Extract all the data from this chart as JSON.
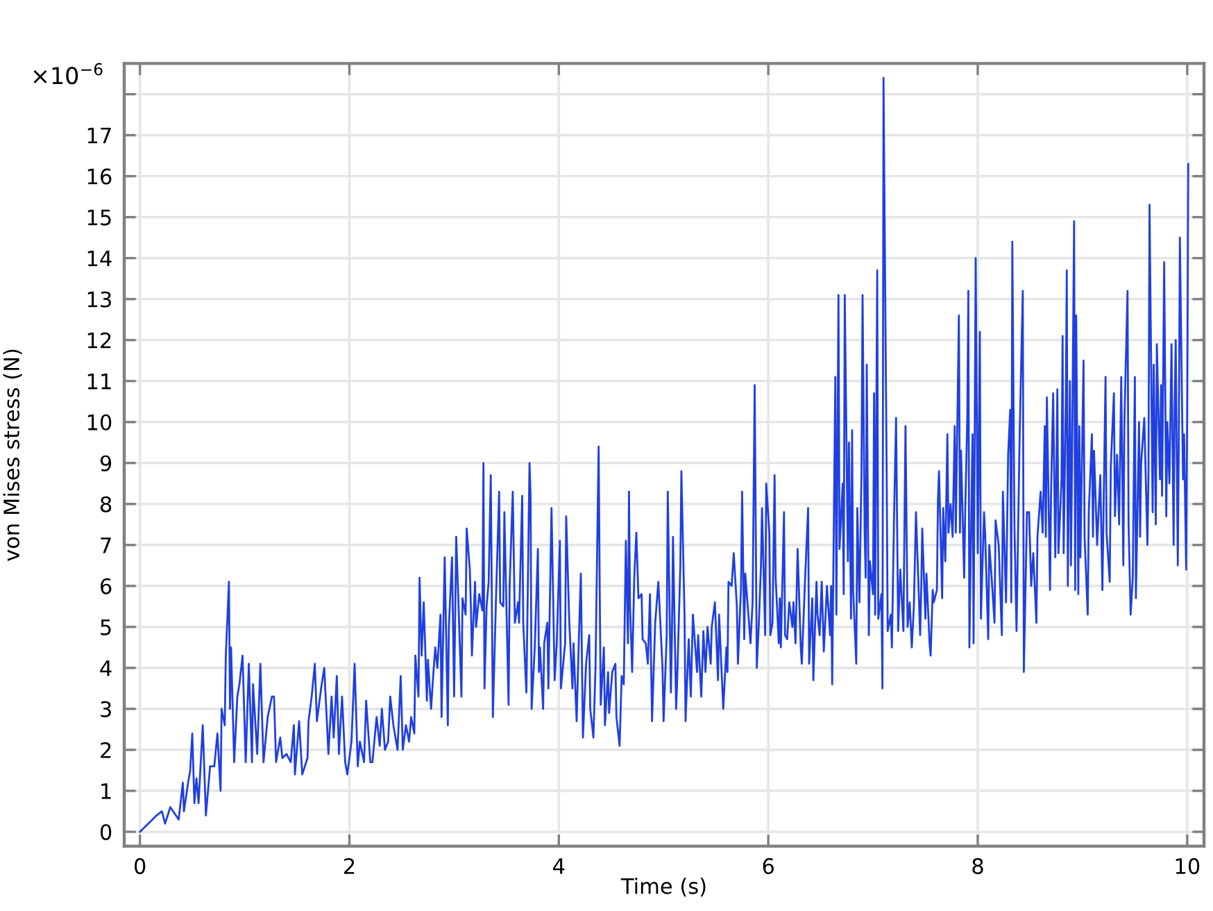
{
  "chart_data": {
    "type": "line",
    "xlabel": "Time (s)",
    "ylabel": "von Mises stress (N)",
    "annotations": [
      "×10$^{−6}$"
    ],
    "xlim": [
      -0.15,
      10.16
    ],
    "ylim": [
      -0.35,
      18.75
    ],
    "xticks": [
      0,
      2,
      4,
      6,
      8,
      10
    ],
    "yticks": [
      0,
      1,
      2,
      3,
      4,
      5,
      6,
      7,
      8,
      9,
      10,
      11,
      12,
      13,
      14,
      15,
      16,
      17,
      {
        "value": 18,
        "label": null
      }
    ],
    "grid": true,
    "x": [
      0.0,
      0.16,
      0.21,
      0.24,
      0.29,
      0.37,
      0.41,
      0.42,
      0.46,
      0.48,
      0.5,
      0.52,
      0.54,
      0.56,
      0.6,
      0.63,
      0.67,
      0.71,
      0.74,
      0.77,
      0.78,
      0.81,
      0.82,
      0.85,
      0.86,
      0.87,
      0.9,
      0.93,
      0.95,
      0.98,
      1.01,
      1.04,
      1.07,
      1.08,
      1.12,
      1.15,
      1.18,
      1.22,
      1.26,
      1.28,
      1.3,
      1.34,
      1.36,
      1.4,
      1.44,
      1.47,
      1.48,
      1.52,
      1.55,
      1.6,
      1.61,
      1.64,
      1.67,
      1.69,
      1.73,
      1.76,
      1.8,
      1.83,
      1.85,
      1.88,
      1.9,
      1.93,
      1.96,
      1.98,
      2.02,
      2.05,
      2.08,
      2.1,
      2.14,
      2.16,
      2.2,
      2.22,
      2.26,
      2.29,
      2.31,
      2.34,
      2.37,
      2.39,
      2.42,
      2.46,
      2.49,
      2.51,
      2.54,
      2.57,
      2.59,
      2.62,
      2.63,
      2.66,
      2.67,
      2.69,
      2.71,
      2.74,
      2.75,
      2.78,
      2.8,
      2.82,
      2.84,
      2.87,
      2.88,
      2.91,
      2.94,
      2.95,
      2.98,
      3.0,
      3.02,
      3.04,
      3.07,
      3.08,
      3.11,
      3.12,
      3.15,
      3.16,
      3.17,
      3.2,
      3.21,
      3.24,
      3.27,
      3.28,
      3.29,
      3.31,
      3.33,
      3.35,
      3.37,
      3.4,
      3.43,
      3.44,
      3.47,
      3.48,
      3.52,
      3.53,
      3.56,
      3.58,
      3.61,
      3.62,
      3.65,
      3.66,
      3.69,
      3.72,
      3.73,
      3.74,
      3.77,
      3.8,
      3.81,
      3.82,
      3.85,
      3.86,
      3.89,
      3.9,
      3.93,
      3.96,
      3.98,
      4.01,
      4.02,
      4.06,
      4.07,
      4.1,
      4.13,
      4.14,
      4.17,
      4.19,
      4.21,
      4.23,
      4.26,
      4.29,
      4.3,
      4.33,
      4.35,
      4.38,
      4.39,
      4.4,
      4.43,
      4.44,
      4.47,
      4.48,
      4.51,
      4.54,
      4.55,
      4.58,
      4.6,
      4.62,
      4.64,
      4.66,
      4.67,
      4.68,
      4.7,
      4.72,
      4.74,
      4.76,
      4.79,
      4.8,
      4.83,
      4.85,
      4.87,
      4.89,
      4.92,
      4.95,
      4.99,
      5.0,
      5.03,
      5.04,
      5.07,
      5.08,
      5.09,
      5.12,
      5.13,
      5.16,
      5.17,
      5.2,
      5.21,
      5.24,
      5.26,
      5.28,
      5.32,
      5.33,
      5.36,
      5.38,
      5.4,
      5.42,
      5.45,
      5.46,
      5.49,
      5.52,
      5.53,
      5.57,
      5.6,
      5.61,
      5.62,
      5.65,
      5.67,
      5.7,
      5.71,
      5.74,
      5.75,
      5.77,
      5.78,
      5.81,
      5.83,
      5.85,
      5.87,
      5.89,
      5.91,
      5.93,
      5.94,
      5.97,
      5.98,
      6.01,
      6.02,
      6.04,
      6.06,
      6.07,
      6.1,
      6.11,
      6.12,
      6.15,
      6.16,
      6.18,
      6.2,
      6.23,
      6.24,
      6.26,
      6.28,
      6.31,
      6.32,
      6.35,
      6.38,
      6.39,
      6.42,
      6.43,
      6.46,
      6.47,
      6.49,
      6.51,
      6.53,
      6.56,
      6.59,
      6.6,
      6.61,
      6.64,
      6.65,
      6.67,
      6.68,
      6.71,
      6.72,
      6.73,
      6.76,
      6.77,
      6.79,
      6.8,
      6.81,
      6.84,
      6.85,
      6.87,
      6.89,
      6.9,
      6.92,
      6.93,
      6.94,
      6.96,
      6.97,
      7.0,
      7.01,
      7.02,
      7.04,
      7.05,
      7.08,
      7.09,
      7.1,
      7.13,
      7.14,
      7.17,
      7.18,
      7.2,
      7.22,
      7.24,
      7.25,
      7.26,
      7.29,
      7.31,
      7.33,
      7.35,
      7.37,
      7.39,
      7.41,
      7.43,
      7.45,
      7.46,
      7.47,
      7.5,
      7.51,
      7.54,
      7.55,
      7.57,
      7.58,
      7.61,
      7.62,
      7.63,
      7.66,
      7.67,
      7.69,
      7.71,
      7.72,
      7.74,
      7.76,
      7.78,
      7.79,
      7.8,
      7.82,
      7.83,
      7.84,
      7.87,
      7.88,
      7.9,
      7.91,
      7.92,
      7.95,
      7.96,
      7.98,
      8.0,
      8.02,
      8.03,
      8.06,
      8.07,
      8.1,
      8.11,
      8.13,
      8.16,
      8.17,
      8.2,
      8.23,
      8.24,
      8.27,
      8.29,
      8.31,
      8.32,
      8.33,
      8.35,
      8.37,
      8.4,
      8.43,
      8.44,
      8.47,
      8.49,
      8.51,
      8.53,
      8.56,
      8.57,
      8.6,
      8.62,
      8.64,
      8.65,
      8.66,
      8.69,
      8.7,
      8.72,
      8.74,
      8.76,
      8.77,
      8.8,
      8.81,
      8.82,
      8.84,
      8.85,
      8.86,
      8.88,
      8.89,
      8.9,
      8.92,
      8.93,
      8.94,
      8.96,
      8.97,
      8.98,
      9.01,
      9.02,
      9.05,
      9.06,
      9.09,
      9.1,
      9.11,
      9.14,
      9.15,
      9.17,
      9.19,
      9.22,
      9.23,
      9.26,
      9.27,
      9.3,
      9.31,
      9.33,
      9.35,
      9.37,
      9.39,
      9.4,
      9.43,
      9.44,
      9.46,
      9.48,
      9.5,
      9.51,
      9.54,
      9.55,
      9.56,
      9.59,
      9.62,
      9.63,
      9.64,
      9.67,
      9.68,
      9.7,
      9.71,
      9.74,
      9.75,
      9.76,
      9.78,
      9.8,
      9.81,
      9.83,
      9.85,
      9.87,
      9.88,
      9.89,
      9.91,
      9.92,
      9.93,
      9.96,
      9.97,
      9.99,
      10.0,
      10.01
    ],
    "series": [
      {
        "color": "#2040e0",
        "values": [
          0.0,
          0.4,
          0.5,
          0.2,
          0.6,
          0.3,
          1.2,
          0.5,
          1.2,
          1.5,
          2.4,
          0.7,
          1.3,
          0.7,
          2.6,
          0.4,
          1.6,
          1.6,
          2.4,
          1.0,
          3.0,
          2.6,
          4.3,
          6.1,
          3.0,
          4.5,
          1.7,
          3.3,
          3.6,
          4.3,
          1.7,
          4.1,
          1.7,
          3.6,
          1.9,
          4.1,
          1.7,
          2.8,
          3.3,
          3.3,
          1.7,
          2.3,
          1.8,
          1.9,
          1.7,
          2.6,
          1.4,
          2.7,
          1.4,
          1.8,
          2.7,
          3.3,
          4.1,
          2.7,
          3.5,
          4.0,
          1.9,
          3.3,
          2.3,
          3.8,
          1.9,
          3.3,
          1.7,
          1.4,
          2.2,
          4.1,
          1.6,
          2.2,
          1.7,
          3.2,
          1.7,
          1.7,
          2.8,
          2.1,
          3.0,
          2.0,
          2.2,
          3.3,
          2.6,
          2.0,
          3.8,
          2.0,
          2.6,
          2.2,
          2.8,
          2.4,
          4.3,
          3.3,
          6.2,
          4.3,
          5.6,
          3.2,
          4.2,
          3.0,
          3.8,
          4.5,
          4.0,
          5.3,
          2.8,
          6.7,
          2.6,
          5.0,
          6.7,
          3.3,
          7.2,
          5.7,
          3.3,
          5.7,
          5.3,
          7.4,
          6.4,
          5.5,
          4.3,
          6.1,
          5.0,
          5.8,
          5.4,
          9.0,
          3.5,
          5.5,
          6.1,
          8.7,
          2.8,
          5.7,
          8.3,
          5.6,
          5.5,
          7.8,
          3.1,
          6.0,
          8.3,
          5.1,
          5.6,
          5.1,
          8.2,
          5.1,
          3.4,
          9.0,
          8.2,
          3.0,
          4.5,
          6.9,
          3.9,
          4.5,
          3.0,
          4.6,
          5.1,
          3.5,
          7.9,
          3.7,
          4.6,
          7.1,
          3.5,
          4.6,
          7.7,
          5.1,
          3.5,
          4.6,
          2.7,
          4.6,
          6.3,
          2.3,
          4.1,
          4.8,
          3.0,
          2.3,
          4.0,
          9.4,
          6.0,
          3.1,
          4.5,
          2.6,
          3.9,
          2.9,
          3.9,
          4.1,
          2.8,
          2.1,
          3.8,
          3.6,
          7.1,
          4.6,
          8.3,
          5.5,
          3.9,
          6.2,
          7.3,
          5.7,
          5.8,
          4.7,
          4.6,
          4.1,
          5.8,
          2.7,
          5.1,
          6.1,
          4.0,
          2.7,
          4.8,
          8.3,
          3.4,
          4.8,
          7.2,
          3.0,
          3.7,
          6.5,
          8.8,
          5.3,
          2.7,
          4.7,
          3.3,
          5.3,
          3.9,
          4.8,
          3.3,
          4.9,
          3.9,
          5.0,
          4.1,
          5.0,
          5.6,
          3.7,
          5.3,
          3.0,
          4.5,
          3.9,
          6.1,
          6.0,
          6.8,
          5.5,
          4.1,
          6.0,
          8.3,
          4.7,
          6.3,
          5.3,
          4.6,
          5.6,
          10.9,
          4.0,
          5.1,
          6.5,
          7.9,
          4.8,
          8.5,
          7.3,
          4.8,
          5.1,
          8.7,
          6.2,
          4.6,
          5.7,
          4.5,
          7.8,
          4.8,
          4.7,
          5.6,
          5.0,
          5.6,
          4.6,
          6.9,
          4.5,
          4.1,
          6.1,
          7.9,
          4.1,
          5.7,
          3.7,
          6.1,
          5.3,
          4.8,
          6.1,
          4.4,
          6.0,
          4.8,
          6.0,
          3.6,
          11.1,
          5.3,
          13.1,
          6.9,
          8.5,
          5.8,
          13.1,
          6.6,
          9.5,
          5.2,
          9.8,
          5.9,
          4.1,
          7.9,
          5.6,
          8.8,
          13.1,
          7.3,
          6.2,
          11.4,
          4.8,
          6.6,
          5.8,
          10.7,
          5.3,
          13.7,
          5.2,
          5.8,
          3.5,
          18.4,
          8.8,
          4.9,
          5.3,
          4.5,
          7.6,
          10.1,
          4.9,
          5.7,
          6.4,
          4.9,
          9.9,
          5.0,
          5.6,
          4.5,
          5.5,
          7.8,
          6.3,
          4.8,
          5.9,
          7.4,
          5.2,
          6.3,
          4.6,
          4.3,
          5.9,
          5.6,
          5.9,
          8.1,
          8.8,
          5.7,
          7.9,
          6.6,
          9.7,
          7.3,
          8.0,
          7.2,
          9.9,
          7.3,
          9.1,
          12.6,
          7.3,
          9.3,
          6.2,
          7.8,
          10.1,
          13.2,
          4.5,
          9.7,
          4.6,
          14.0,
          6.8,
          12.2,
          5.2,
          7.8,
          7.3,
          4.7,
          7.0,
          6.3,
          5.1,
          7.6,
          7.0,
          4.8,
          8.3,
          5.6,
          9.2,
          10.3,
          5.6,
          14.4,
          7.5,
          4.9,
          9.7,
          13.2,
          3.9,
          7.8,
          7.8,
          6.0,
          6.8,
          5.1,
          7.2,
          8.3,
          7.3,
          9.9,
          7.2,
          10.6,
          5.9,
          8.3,
          10.7,
          6.7,
          10.8,
          6.8,
          8.6,
          12.1,
          6.8,
          10.3,
          13.7,
          6.0,
          11.0,
          6.5,
          9.0,
          14.9,
          5.9,
          12.6,
          5.8,
          9.9,
          6.7,
          11.5,
          7.2,
          5.3,
          7.8,
          9.7,
          7.2,
          9.3,
          7.0,
          7.6,
          8.7,
          5.9,
          11.1,
          7.3,
          6.1,
          8.9,
          10.7,
          7.7,
          9.2,
          7.5,
          11.1,
          6.5,
          10.0,
          13.2,
          7.5,
          5.3,
          6.2,
          11.1,
          5.7,
          10.0,
          7.2,
          9.0,
          10.1,
          7.0,
          8.7,
          15.3,
          7.8,
          11.4,
          7.5,
          11.9,
          8.6,
          10.9,
          8.2,
          13.9,
          7.7,
          10.0,
          8.5,
          11.9,
          7.0,
          10.4,
          12.0,
          6.5,
          9.7,
          14.5,
          8.6,
          9.7,
          6.4,
          10.4,
          16.3
        ]
      }
    ]
  }
}
